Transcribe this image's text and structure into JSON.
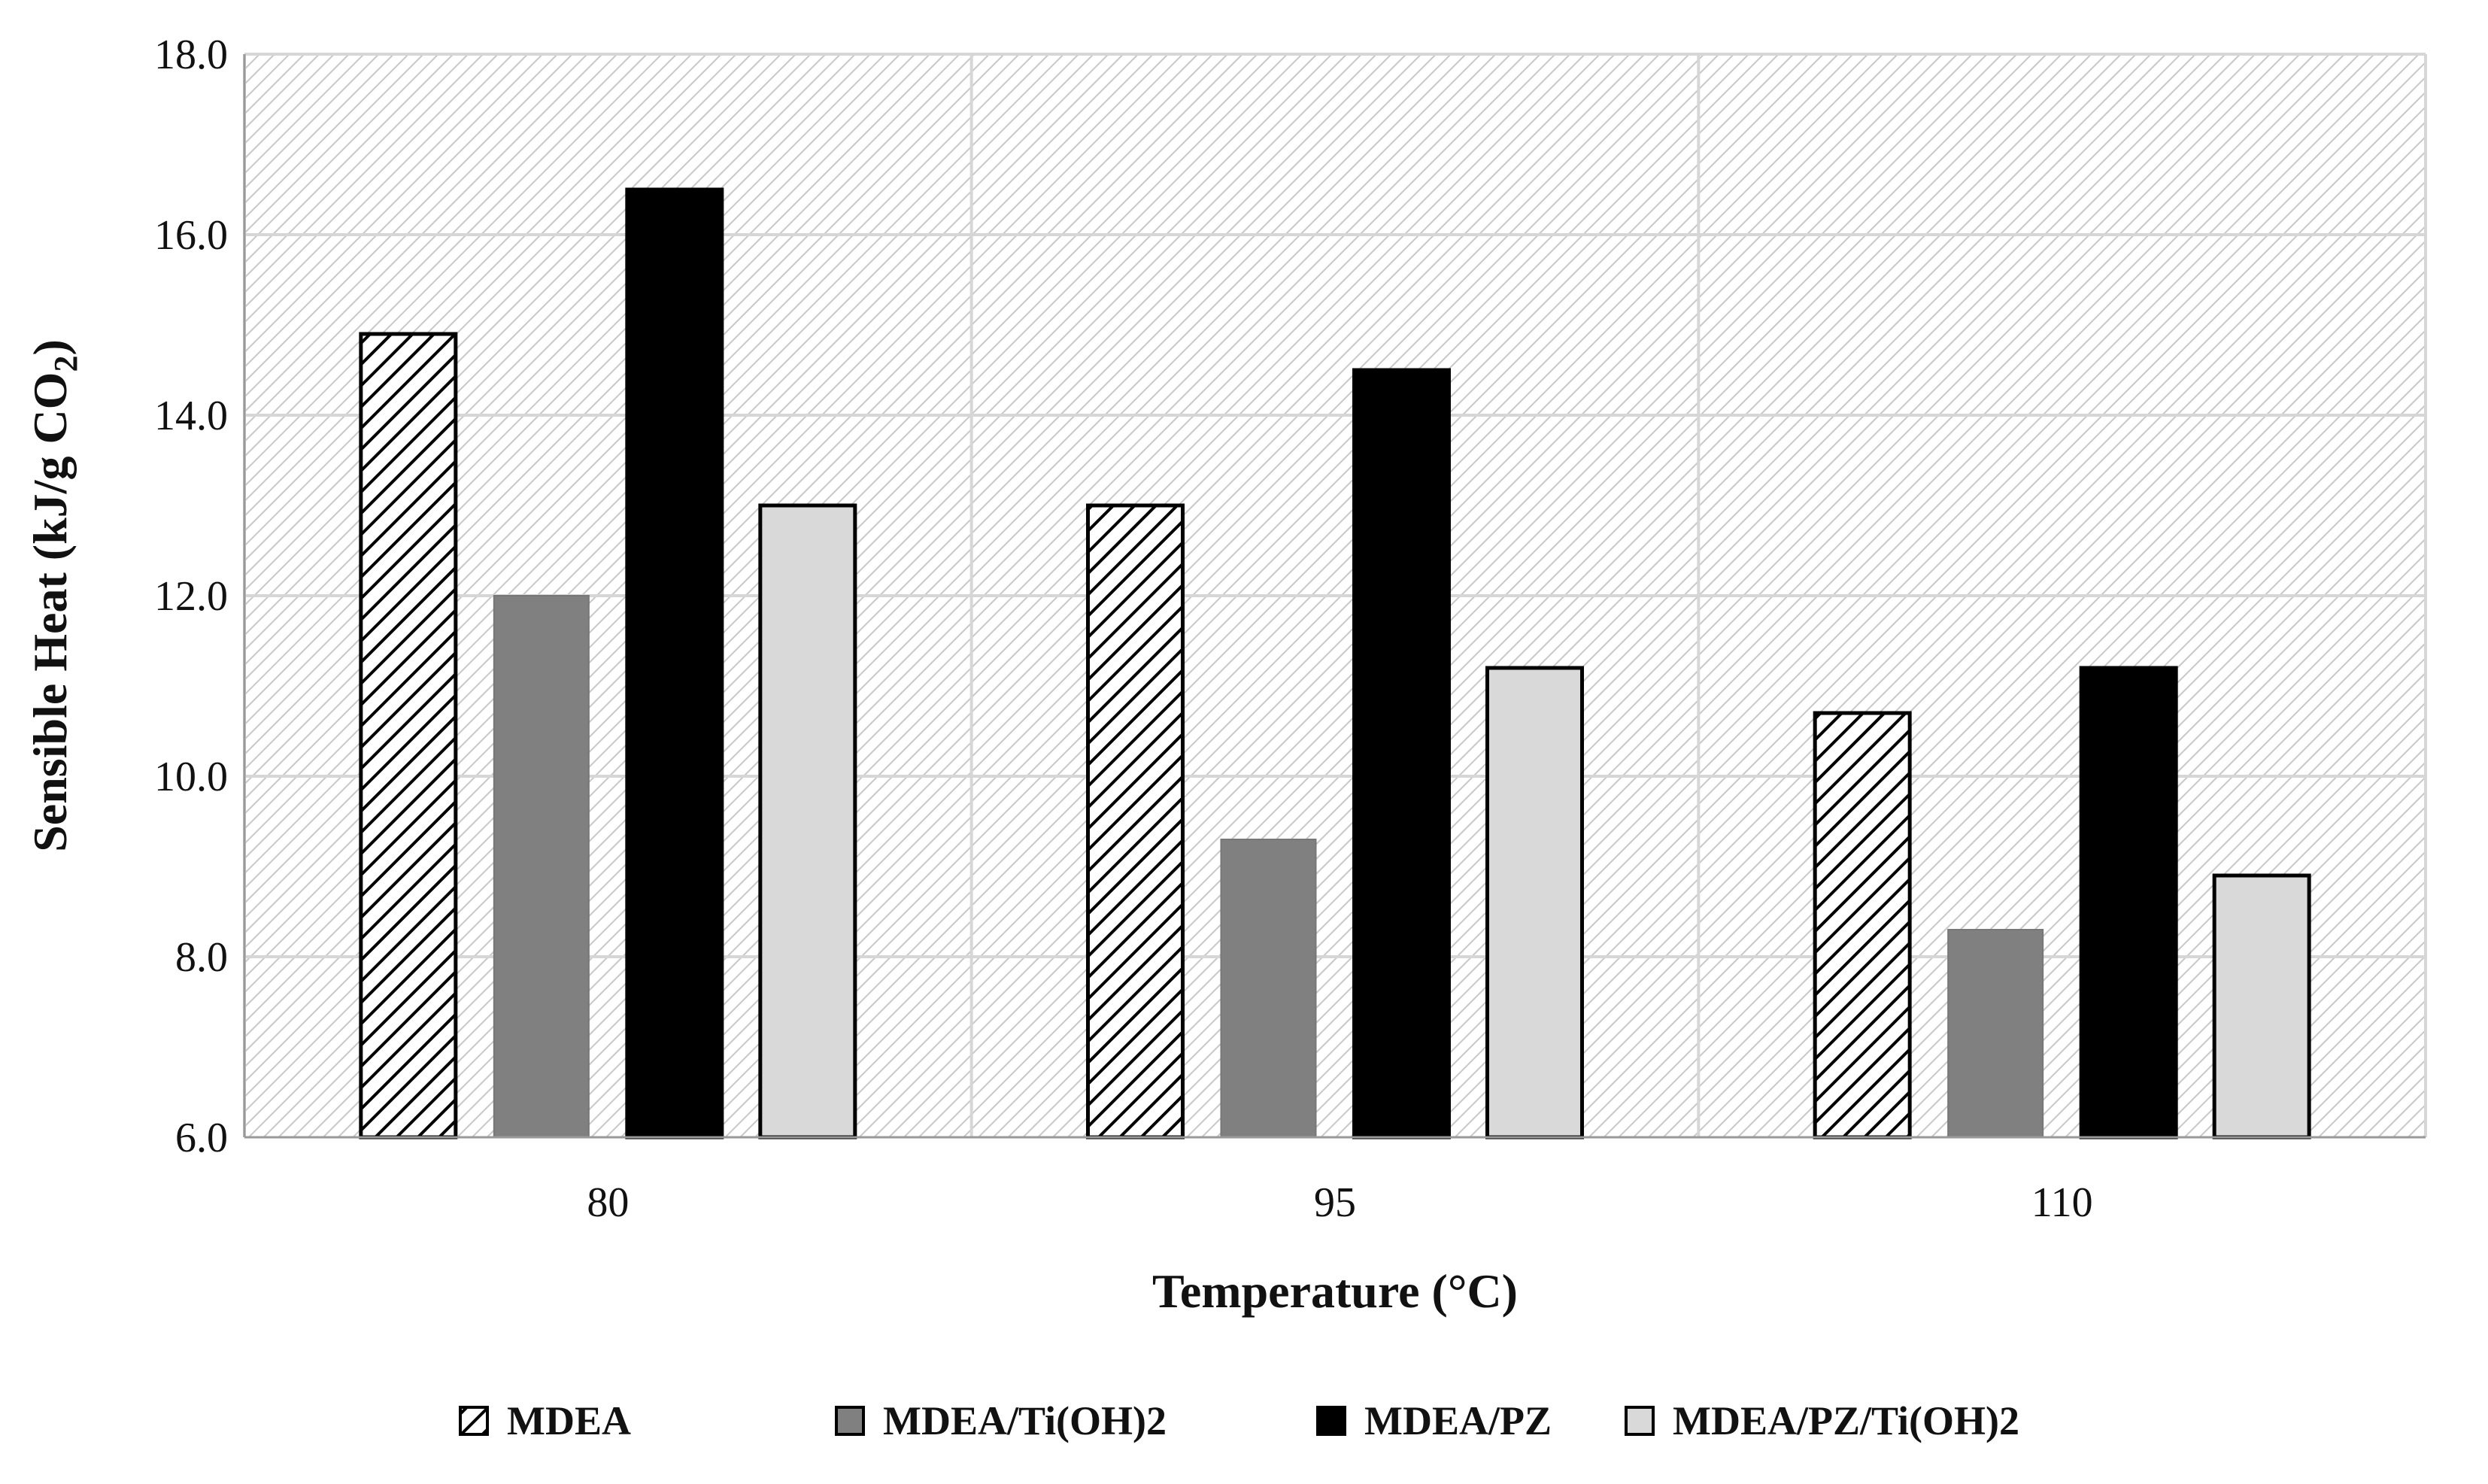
{
  "chart_data": {
    "type": "bar",
    "title": "",
    "xlabel": "Temperature (°C)",
    "ylabel": "Sensible Heat (kJ/g CO2)",
    "ylabel_parts": {
      "main": "Sensible Heat (kJ/g CO",
      "subscript": "2",
      "close": ")"
    },
    "categories": [
      "80",
      "95",
      "110"
    ],
    "ylim": [
      6.0,
      18.0
    ],
    "yticks": [
      "6.0",
      "8.0",
      "10.0",
      "12.0",
      "14.0",
      "16.0",
      "18.0"
    ],
    "grid": true,
    "legend_position": "bottom",
    "series": [
      {
        "name": "MDEA",
        "values": [
          14.9,
          13.0,
          10.7
        ],
        "fill": "hatch",
        "color": "#000000"
      },
      {
        "name": "MDEA/Ti(OH)2",
        "values": [
          12.0,
          9.3,
          8.3
        ],
        "fill": "solid",
        "color": "#808080"
      },
      {
        "name": "MDEA/PZ",
        "values": [
          16.5,
          14.5,
          11.2
        ],
        "fill": "solid",
        "color": "#000000"
      },
      {
        "name": "MDEA/PZ/Ti(OH)2",
        "values": [
          13.0,
          11.2,
          8.9
        ],
        "fill": "solid",
        "color": "#d9d9d9"
      }
    ],
    "colors": {
      "plot_background_hatch": "#c8c8c8",
      "gridline": "#d6d6d6",
      "axis": "#999999"
    }
  }
}
